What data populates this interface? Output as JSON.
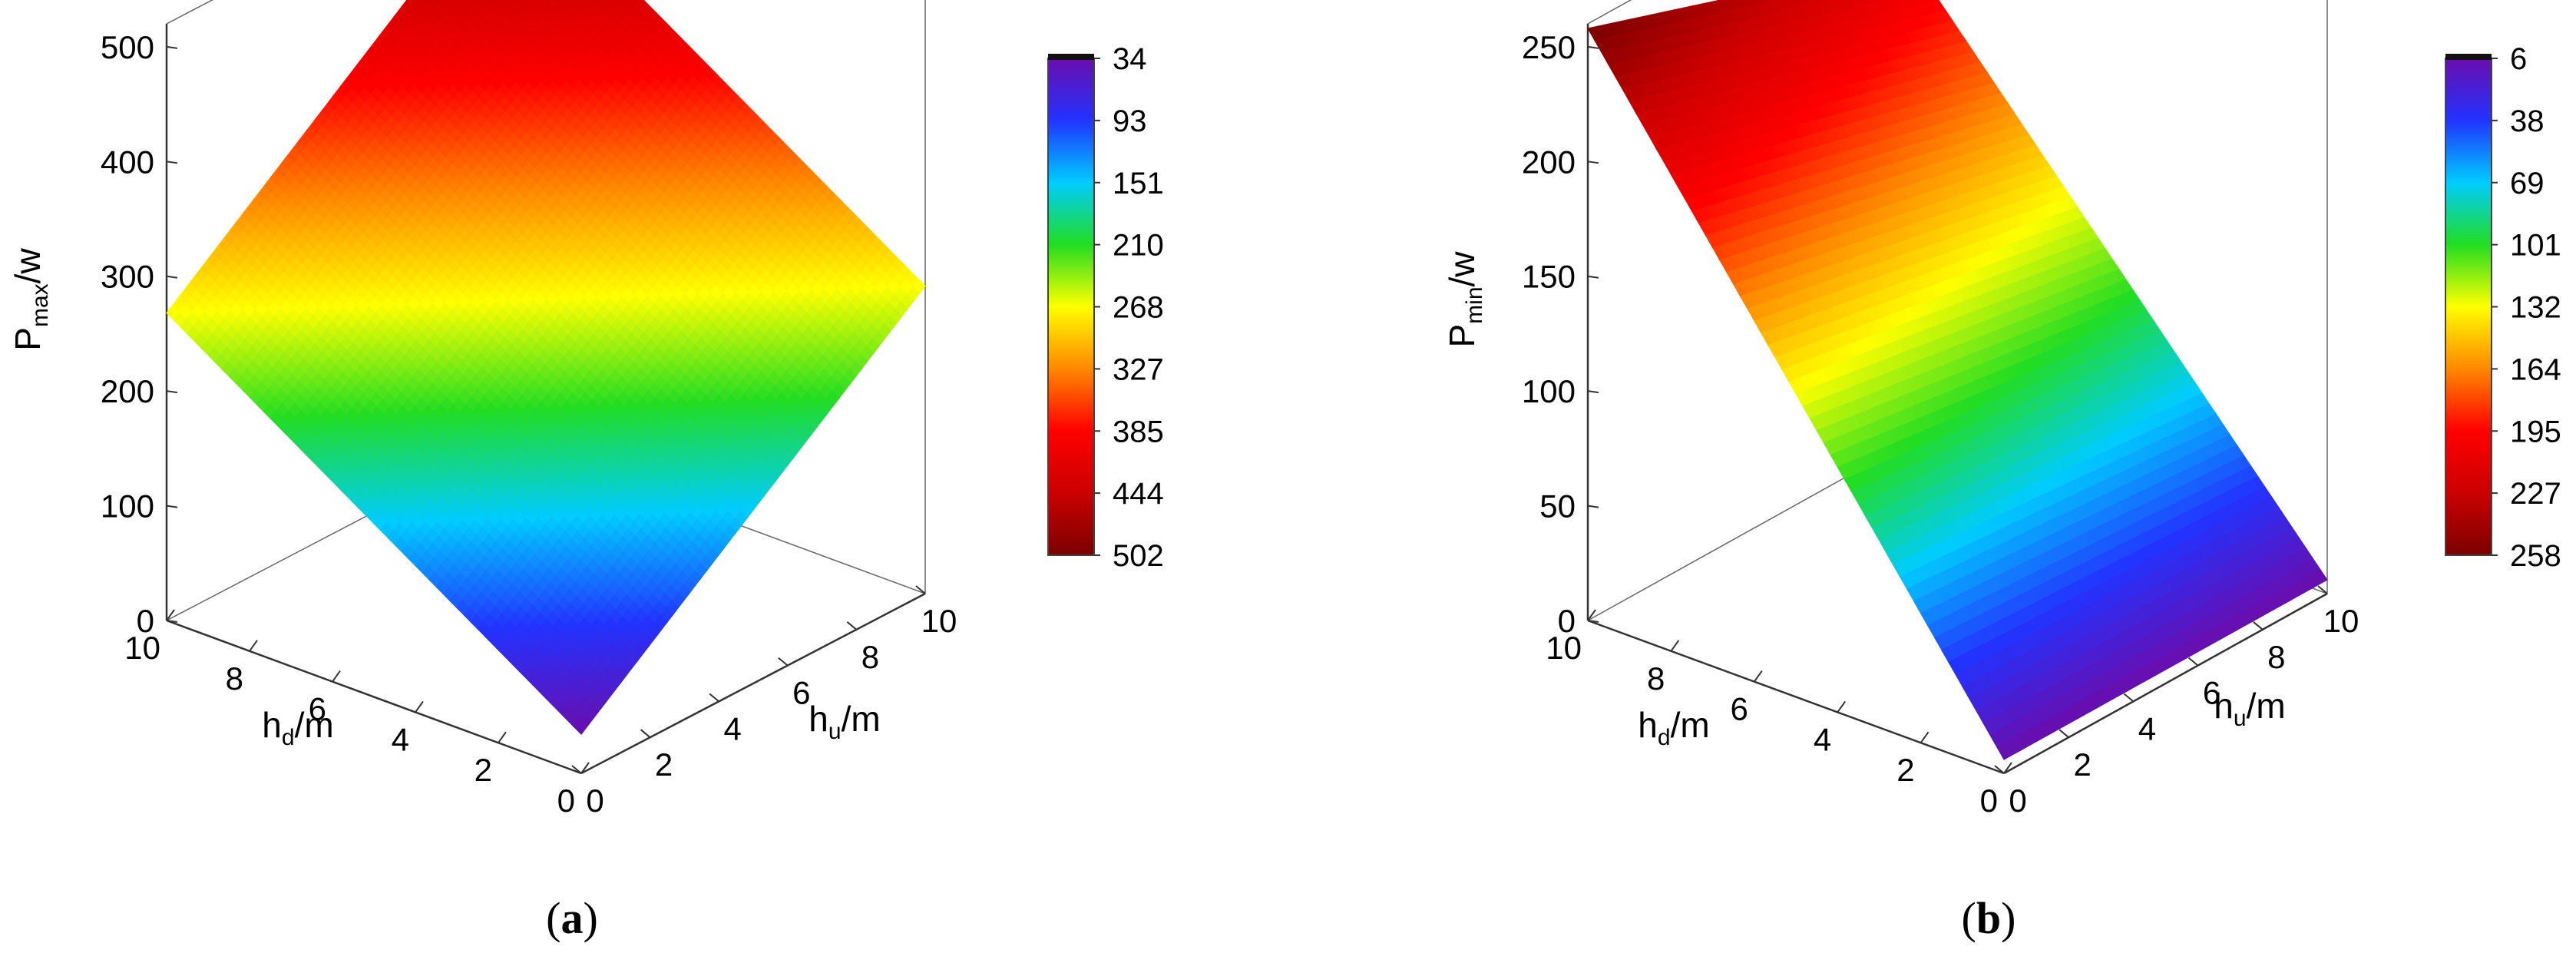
{
  "chart_data": [
    {
      "type": "surface3d",
      "caption": "a",
      "zlabel": {
        "base": "P",
        "sub": "max",
        "suffix": "/w"
      },
      "xlabel": {
        "base": "h",
        "sub": "d",
        "suffix": "/m"
      },
      "ylabel": {
        "base": "h",
        "sub": "u",
        "suffix": "/m"
      },
      "xlim": [
        0,
        10
      ],
      "ylim": [
        0,
        10
      ],
      "zlim": [
        0,
        520
      ],
      "zticks": [
        0,
        100,
        200,
        300,
        400,
        500
      ],
      "xticks": [
        0,
        2,
        4,
        6,
        8,
        10
      ],
      "yticks": [
        0,
        2,
        4,
        6,
        8,
        10
      ],
      "x": [
        0,
        10
      ],
      "y": [
        0,
        10
      ],
      "z": [
        [
          34,
          268
        ],
        [
          268,
          502
        ]
      ],
      "colorbar_ticks": [
        34,
        93,
        151,
        210,
        268,
        327,
        385,
        444,
        502
      ],
      "colormap": [
        "#6a0dad",
        "#2233ff",
        "#00ccff",
        "#22dd22",
        "#ffff00",
        "#ff8800",
        "#ff0000",
        "#cc0000",
        "#7a0000"
      ]
    },
    {
      "type": "surface3d",
      "caption": "b",
      "zlabel": {
        "base": "P",
        "sub": "min",
        "suffix": "/w"
      },
      "xlabel": {
        "base": "h",
        "sub": "d",
        "suffix": "/m"
      },
      "ylabel": {
        "base": "h",
        "sub": "u",
        "suffix": "/m"
      },
      "xlim": [
        0,
        10
      ],
      "ylim": [
        0,
        10
      ],
      "zlim": [
        0,
        260
      ],
      "zticks": [
        0,
        50,
        100,
        150,
        200,
        250
      ],
      "xticks": [
        0,
        2,
        4,
        6,
        8,
        10
      ],
      "yticks": [
        0,
        2,
        4,
        6,
        8,
        10
      ],
      "x": [
        0,
        10
      ],
      "y": [
        0,
        10
      ],
      "z": [
        [
          6,
          6
        ],
        [
          258,
          210
        ]
      ],
      "colorbar_ticks": [
        6,
        38,
        69,
        101,
        132,
        164,
        195,
        227,
        258
      ],
      "colormap": [
        "#6a0dad",
        "#2233ff",
        "#00ccff",
        "#22dd22",
        "#ffff00",
        "#ff8800",
        "#ff0000",
        "#cc0000",
        "#7a0000"
      ]
    }
  ]
}
